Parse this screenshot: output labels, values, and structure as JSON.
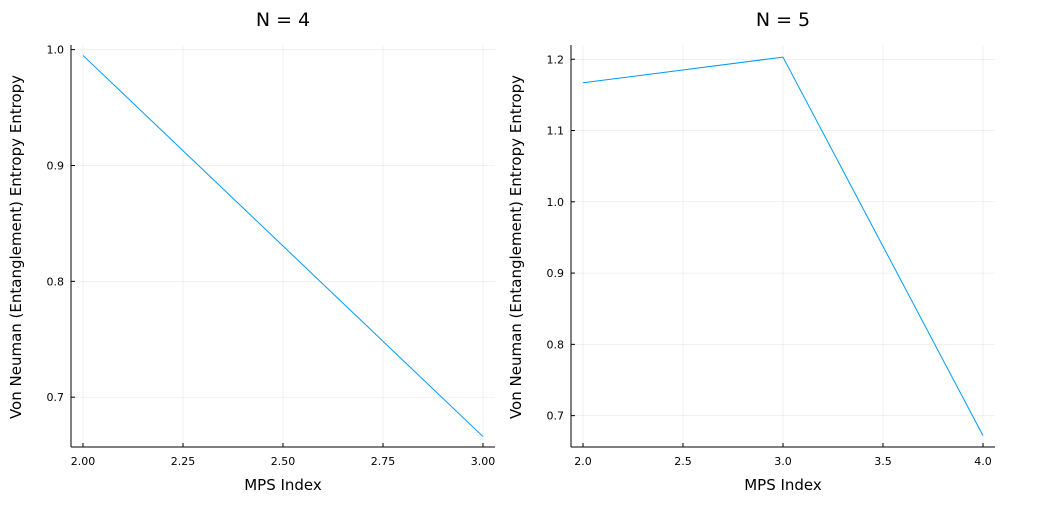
{
  "chart_data": [
    {
      "type": "line",
      "title": "N = 4",
      "xlabel": "MPS Index",
      "ylabel": "Von Neuman (Entanglement) Entropy Entropy",
      "xlim": [
        1.97,
        3.03
      ],
      "ylim": [
        0.657,
        1.004
      ],
      "xticks": [
        2.0,
        2.25,
        2.5,
        2.75,
        3.0
      ],
      "xtick_labels": [
        "2.00",
        "2.25",
        "2.50",
        "2.75",
        "3.00"
      ],
      "yticks": [
        0.7,
        0.8,
        0.9,
        1.0
      ],
      "ytick_labels": [
        "0.7",
        "0.8",
        "0.9",
        "1.0"
      ],
      "grid": true,
      "series": [
        {
          "color": "#009AFA",
          "x": [
            2.0,
            3.0
          ],
          "y": [
            0.995,
            0.666
          ]
        }
      ]
    },
    {
      "type": "line",
      "title": "N = 5",
      "xlabel": "MPS Index",
      "ylabel": "Von Neuman (Entanglement) Entropy Entropy",
      "xlim": [
        1.94,
        4.06
      ],
      "ylim": [
        0.656,
        1.22
      ],
      "xticks": [
        2.0,
        2.5,
        3.0,
        3.5,
        4.0
      ],
      "xtick_labels": [
        "2.0",
        "2.5",
        "3.0",
        "3.5",
        "4.0"
      ],
      "yticks": [
        0.7,
        0.8,
        0.9,
        1.0,
        1.1,
        1.2
      ],
      "ytick_labels": [
        "0.7",
        "0.8",
        "0.9",
        "1.0",
        "1.1",
        "1.2"
      ],
      "grid": true,
      "series": [
        {
          "color": "#009AFA",
          "x": [
            2.0,
            3.0,
            4.0
          ],
          "y": [
            1.167,
            1.203,
            0.672
          ]
        }
      ]
    }
  ]
}
